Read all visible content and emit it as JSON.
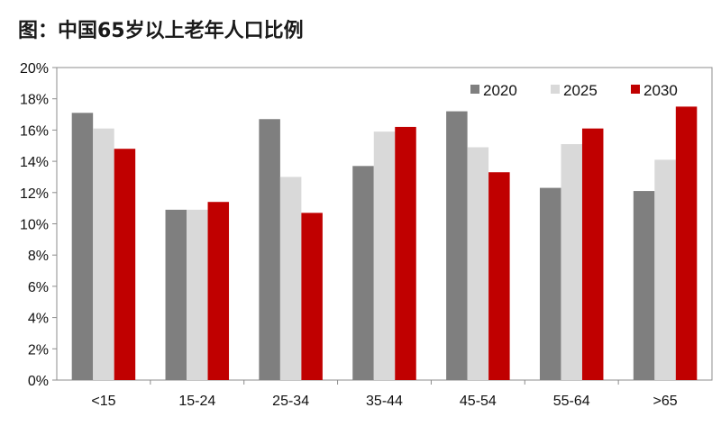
{
  "chart_data": {
    "type": "bar",
    "title": "图：中国65岁以上老年人口比例",
    "xlabel": "",
    "ylabel": "",
    "categories": [
      "<15",
      "15-24",
      "25-34",
      "35-44",
      "45-54",
      "55-64",
      ">65"
    ],
    "series": [
      {
        "name": "2020",
        "color": "#7f7f7f",
        "values": [
          17.1,
          10.9,
          16.7,
          13.7,
          17.2,
          12.3,
          12.1
        ]
      },
      {
        "name": "2025",
        "color": "#d9d9d9",
        "values": [
          16.1,
          10.9,
          13.0,
          15.9,
          14.9,
          15.1,
          14.1
        ]
      },
      {
        "name": "2030",
        "color": "#c00000",
        "values": [
          14.8,
          11.4,
          10.7,
          16.2,
          13.3,
          16.1,
          17.5
        ]
      }
    ],
    "ylim": [
      0,
      20
    ],
    "yticks": [
      "0%",
      "2%",
      "4%",
      "6%",
      "8%",
      "10%",
      "12%",
      "14%",
      "16%",
      "18%",
      "20%"
    ],
    "grid": false,
    "legend": "top-right"
  }
}
